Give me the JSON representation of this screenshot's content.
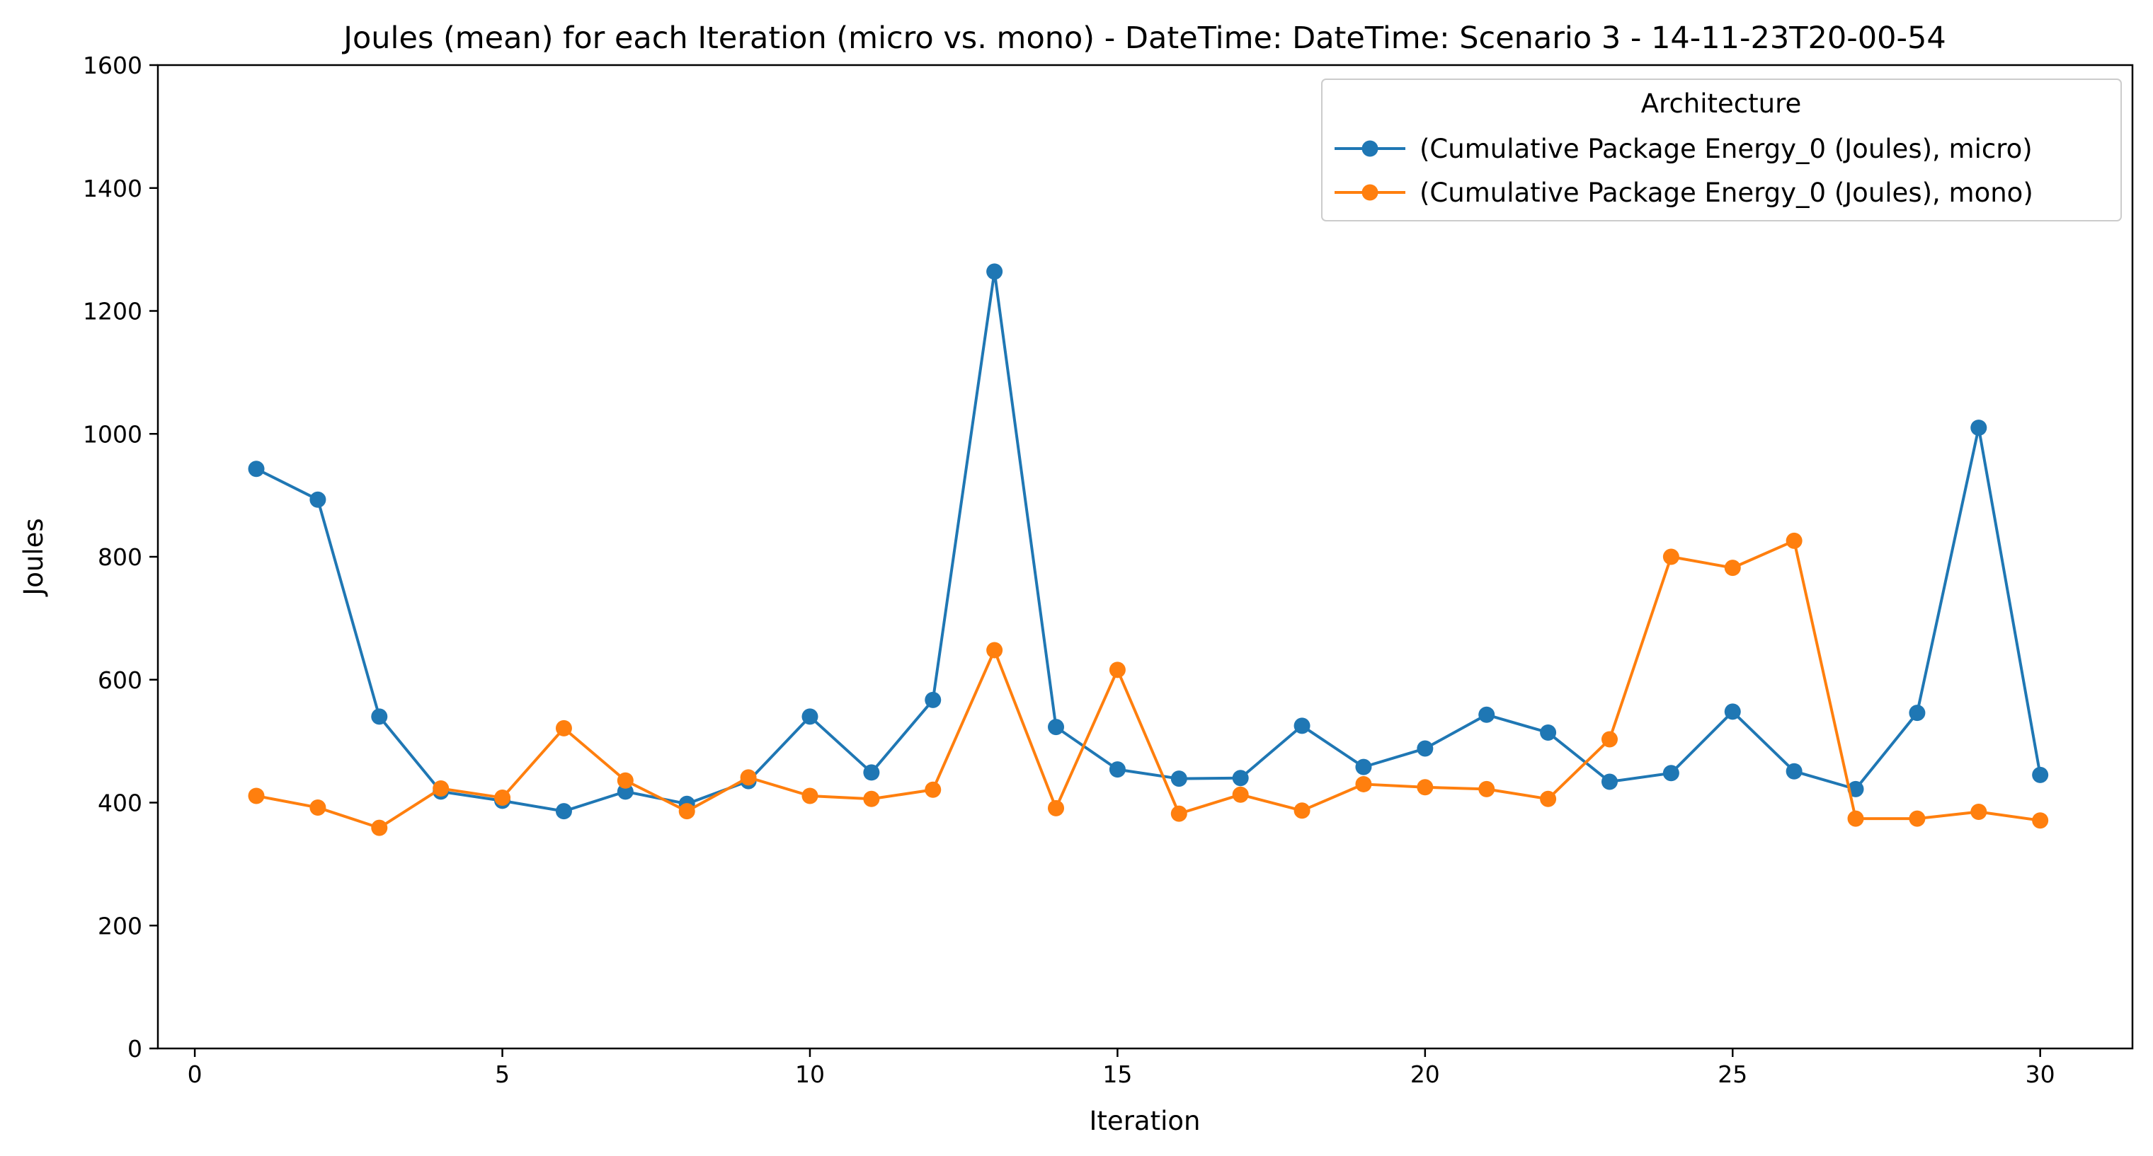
{
  "chart_data": {
    "type": "line",
    "title": "Joules (mean) for each Iteration (micro vs. mono) - DateTime: DateTime: Scenario 3 - 14-11-23T20-00-54",
    "xlabel": "Iteration",
    "ylabel": "Joules",
    "xlim": [
      -0.6,
      31.5
    ],
    "ylim": [
      0,
      1600
    ],
    "xticks": [
      0,
      5,
      10,
      15,
      20,
      25,
      30
    ],
    "yticks": [
      0,
      200,
      400,
      600,
      800,
      1000,
      1200,
      1400,
      1600
    ],
    "grid": false,
    "legend": {
      "title": "Architecture",
      "placement": "upper right"
    },
    "x": [
      1,
      2,
      3,
      4,
      5,
      6,
      7,
      8,
      9,
      10,
      11,
      12,
      13,
      14,
      15,
      16,
      17,
      18,
      19,
      20,
      21,
      22,
      23,
      24,
      25,
      26,
      27,
      28,
      29,
      30
    ],
    "series": [
      {
        "name": "(Cumulative Package Energy_0 (Joules), micro)",
        "color": "#1f77b4",
        "values": [
          943,
          893,
          540,
          418,
          403,
          386,
          418,
          398,
          435,
          540,
          449,
          567,
          1264,
          523,
          454,
          439,
          440,
          525,
          458,
          488,
          543,
          514,
          434,
          448,
          548,
          451,
          422,
          546,
          1010,
          445
        ]
      },
      {
        "name": "(Cumulative Package Energy_0 (Joules), mono)",
        "color": "#ff7f0e",
        "values": [
          411,
          392,
          359,
          423,
          408,
          521,
          436,
          386,
          441,
          411,
          406,
          421,
          648,
          391,
          616,
          382,
          413,
          387,
          430,
          425,
          422,
          406,
          503,
          800,
          782,
          826,
          374,
          374,
          385,
          371
        ]
      }
    ]
  }
}
